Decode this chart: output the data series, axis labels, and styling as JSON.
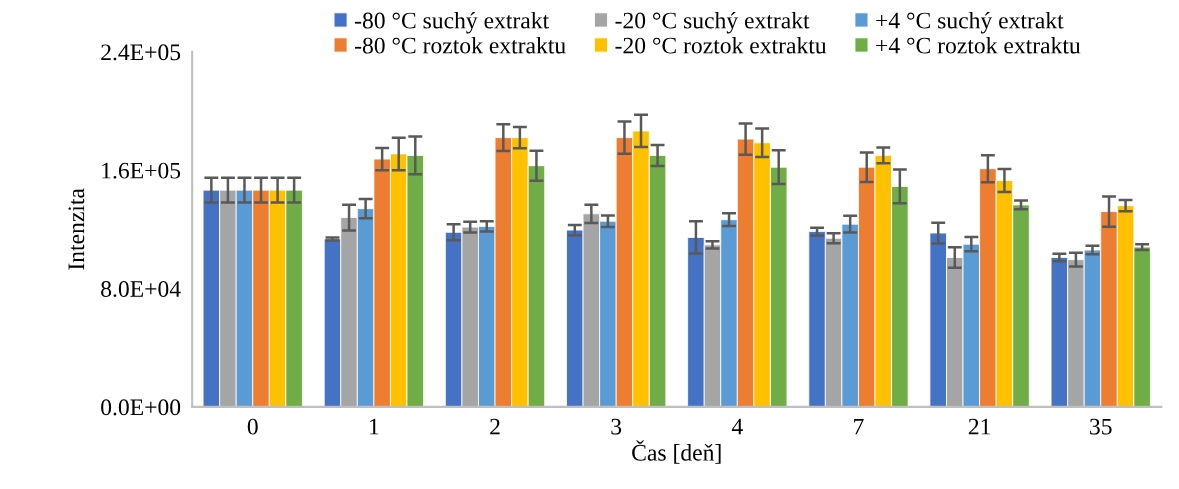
{
  "chart_data": {
    "type": "bar",
    "xlabel": "Čas [deň]",
    "ylabel": "Intenzita",
    "categories": [
      "0",
      "1",
      "2",
      "3",
      "4",
      "7",
      "21",
      "35"
    ],
    "ylim": [
      0,
      240000
    ],
    "yticks": [
      {
        "value": 0,
        "label": "0.0E+00"
      },
      {
        "value": 80000,
        "label": "8.0E+04"
      },
      {
        "value": 160000,
        "label": "1.6E+05"
      },
      {
        "value": 240000,
        "label": "2.4E+05"
      }
    ],
    "grid": false,
    "legend": "top",
    "series": [
      {
        "name": "-80 °C suchý extrakt",
        "color": "#4472c4",
        "values": [
          146500,
          113500,
          118000,
          119500,
          114500,
          118500,
          117500,
          101000
        ],
        "errors": [
          8400,
          1000,
          5400,
          3500,
          10900,
          2600,
          7000,
          2500
        ]
      },
      {
        "name": "-20 °C suchý extrakt",
        "color": "#a5a5a5",
        "values": [
          146500,
          128000,
          121500,
          130500,
          109500,
          114000,
          101000,
          99500
        ],
        "errors": [
          8400,
          8700,
          3700,
          6200,
          2400,
          3400,
          6900,
          4600
        ]
      },
      {
        "name": "+4 °C suchý extrakt",
        "color": "#5b9bd5",
        "values": [
          146500,
          134000,
          122000,
          125500,
          126500,
          123500,
          110000,
          106000
        ],
        "errors": [
          8400,
          6500,
          3400,
          3900,
          4300,
          5700,
          4800,
          2900
        ]
      },
      {
        "name": "-80 °C roztok extraktu",
        "color": "#ed7d31",
        "values": [
          146500,
          167500,
          182000,
          182000,
          181000,
          162000,
          161000,
          132000
        ],
        "errors": [
          8400,
          7500,
          9000,
          10900,
          10600,
          10000,
          9100,
          10200
        ]
      },
      {
        "name": "-20 °C roztok extraktu",
        "color": "#ffc000",
        "values": [
          146500,
          171000,
          182000,
          186500,
          178500,
          170000,
          153000,
          136000
        ],
        "errors": [
          8400,
          11000,
          7200,
          10900,
          9600,
          5300,
          7800,
          3800
        ]
      },
      {
        "name": "+4 °C roztok extraktu",
        "color": "#70ad47",
        "values": [
          146500,
          170000,
          163000,
          170000,
          162000,
          149000,
          136500,
          108000
        ],
        "errors": [
          8400,
          12700,
          10200,
          7100,
          11400,
          11400,
          3000,
          1900
        ]
      }
    ]
  }
}
